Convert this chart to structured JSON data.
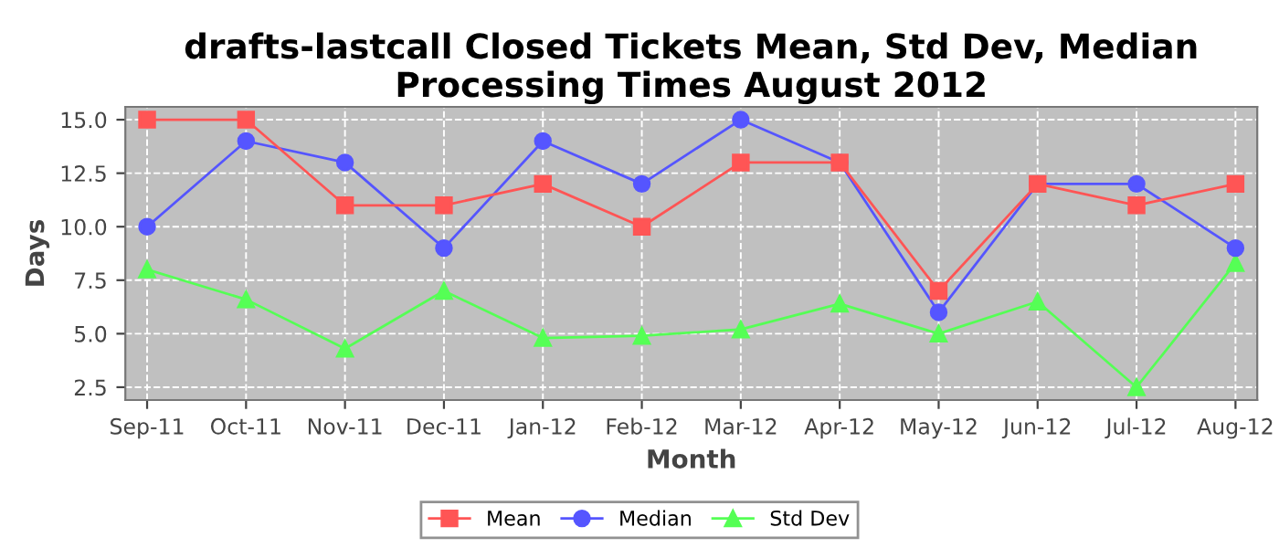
{
  "chart_data": {
    "type": "line",
    "title": "drafts-lastcall Closed Tickets Mean, Std Dev, Median Processing Times August 2012",
    "xlabel": "Month",
    "ylabel": "Days",
    "categories": [
      "Sep-11",
      "Oct-11",
      "Nov-11",
      "Dec-11",
      "Jan-12",
      "Feb-12",
      "Mar-12",
      "Apr-12",
      "May-12",
      "Jun-12",
      "Jul-12",
      "Aug-12"
    ],
    "series": [
      {
        "name": "Mean",
        "color": "#ff5555",
        "marker": "square",
        "values": [
          15,
          15,
          11,
          11,
          12,
          10,
          13,
          13,
          7,
          12,
          11,
          12
        ]
      },
      {
        "name": "Median",
        "color": "#5555ff",
        "marker": "circle",
        "values": [
          10,
          14,
          13,
          9,
          14,
          12,
          15,
          13,
          6,
          12,
          12,
          9
        ]
      },
      {
        "name": "Std Dev",
        "color": "#55ff55",
        "marker": "triangle",
        "values": [
          8.0,
          6.6,
          4.3,
          7.0,
          4.8,
          4.9,
          5.2,
          6.4,
          5.0,
          6.5,
          2.5,
          8.3
        ]
      }
    ],
    "ylim": [
      1.9,
      15.6
    ],
    "yticks": [
      {
        "value": 2.5,
        "label": "2.5"
      },
      {
        "value": 5,
        "label": "5.0"
      },
      {
        "value": 7.5,
        "label": "7.5"
      },
      {
        "value": 10,
        "label": "10.0"
      },
      {
        "value": 12.5,
        "label": "12.5"
      },
      {
        "value": 15,
        "label": "15.0"
      }
    ],
    "grid": true,
    "legend": "bottom",
    "line_style": "solid"
  }
}
